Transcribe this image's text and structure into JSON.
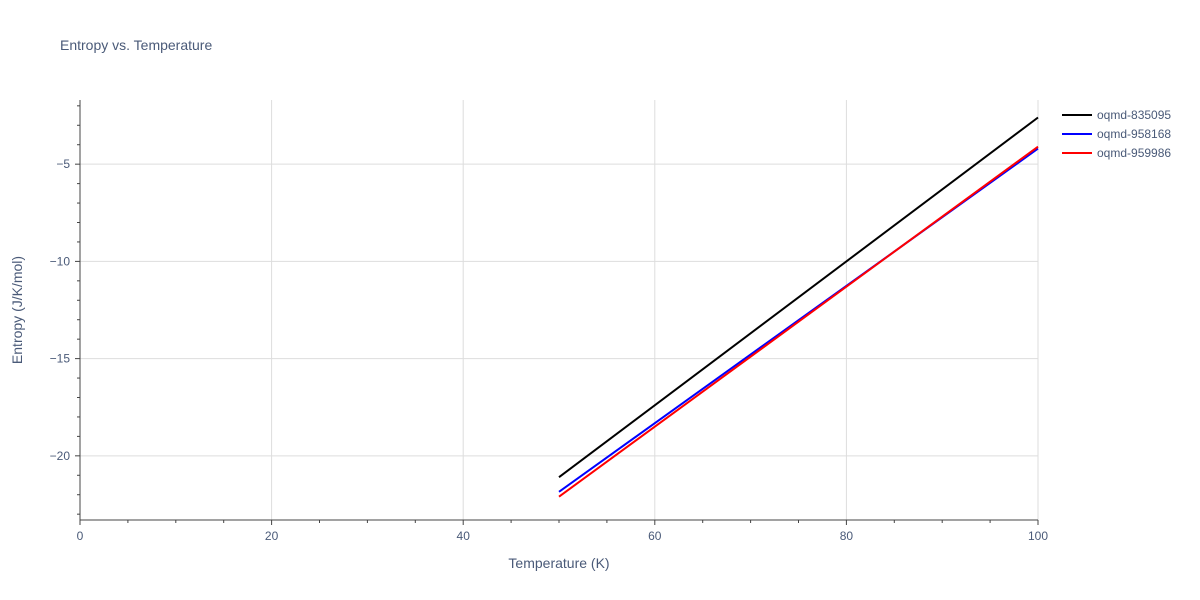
{
  "chart_data": {
    "type": "line",
    "title": "Entropy vs. Temperature",
    "xlabel": "Temperature (K)",
    "ylabel": "Entropy (J/K/mol)",
    "xlim": [
      0,
      100
    ],
    "ylim": [
      -23.3,
      -1.7
    ],
    "x_ticks": [
      0,
      20,
      40,
      60,
      80,
      100
    ],
    "y_ticks": [
      -20,
      -15,
      -10,
      -5
    ],
    "y_tick_labels": [
      "−20",
      "−15",
      "−10",
      "−5"
    ],
    "grid": true,
    "legend_position": "top-right",
    "series": [
      {
        "name": "oqmd-835095",
        "color": "#000000",
        "x": [
          50,
          100
        ],
        "y": [
          -21.1,
          -2.6
        ]
      },
      {
        "name": "oqmd-958168",
        "color": "#0000ff",
        "x": [
          50,
          100
        ],
        "y": [
          -21.85,
          -4.2
        ]
      },
      {
        "name": "oqmd-959986",
        "color": "#ff0000",
        "x": [
          50,
          100
        ],
        "y": [
          -22.1,
          -4.1
        ]
      }
    ]
  }
}
